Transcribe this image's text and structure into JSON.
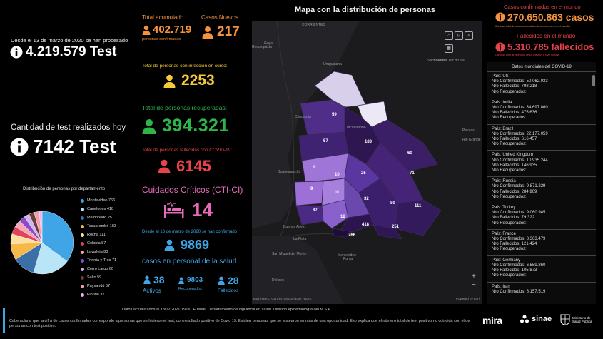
{
  "left": {
    "since_label": "Desde el 13 de marzo de 2020 se han procesado",
    "total_tests": "4.219.579 Test",
    "today_label": "Cantidad de test realizados hoy",
    "today_tests": "7142 Test",
    "pie_title": "Distribución de personas por departamento",
    "legend": [
      {
        "label": "Montevideo 766",
        "color": "#3fa5e6"
      },
      {
        "label": "Canelones 418",
        "color": "#b8e6f8"
      },
      {
        "label": "Maldonado 251",
        "color": "#3a6fa8"
      },
      {
        "label": "Tacuarembó 183",
        "color": "#f5b94a"
      },
      {
        "label": "Rocha 111",
        "color": "#fde0a0"
      },
      {
        "label": "Colonia 87",
        "color": "#e0425a"
      },
      {
        "label": "Lavalleja 80",
        "color": "#f5a6b8"
      },
      {
        "label": "Treinta y Tres 71",
        "color": "#8a4bc8"
      },
      {
        "label": "Cerro Largo 60",
        "color": "#d2b4f0"
      },
      {
        "label": "Salto 59",
        "color": "#6a3f38"
      },
      {
        "label": "Paysandú 57",
        "color": "#f59eb0"
      },
      {
        "label": "Florida 32",
        "color": "#e9b4e8"
      }
    ],
    "pie_values": [
      766,
      418,
      251,
      183,
      111,
      87,
      80,
      71,
      60,
      59,
      57,
      32
    ]
  },
  "mid": {
    "total_label": "Total acumulado",
    "total_value": "402.719",
    "total_sub": "personas confirmadas",
    "new_label": "Casos Nuevos",
    "new_value": "217",
    "active_label": "Total de personas con infección en curso:",
    "active_value": "2253",
    "recovered_label": "Total de personas recuperadas:",
    "recovered_value": "394.321",
    "deaths_label": "Total de personas fallecidas con COVID-19:",
    "deaths_value": "6145",
    "cti_label": "Cuidados Críticos (CTI-CI)",
    "cti_value": "14",
    "health_since": "Desde el 13 de marzo de 2020 se han confirmado",
    "health_value": "9869",
    "health_label": "casos en personal de la salud",
    "h_active_value": "38",
    "h_active_label": "Activos",
    "h_recovered_value": "9803",
    "h_recovered_label": "Recuperados",
    "h_deaths_value": "28",
    "h_deaths_label": "Fallecidos"
  },
  "map": {
    "title": "Mapa con la distribución de personas",
    "attribution": "Esri, HERE, Garmin, USGS | Esri, HERE",
    "powered": "Powered by Esri",
    "places": [
      "CORRIENTES",
      "Goya",
      "Reconquista",
      "Uruguaiana",
      "Santa María",
      "Santa Cruz do Sul",
      "Concordia",
      "Tacuarembó",
      "Pelotas",
      "Rio Grande",
      "Gualeguaychú",
      "Buenos Aires",
      "La Plata",
      "Montevideo",
      "San Miguel del Monte",
      "Dolores",
      "Punta"
    ],
    "dept_values": [
      "59",
      "57",
      "183",
      "60",
      "9",
      "10",
      "25",
      "71",
      "9",
      "10",
      "32",
      "80",
      "111",
      "87",
      "18",
      "418",
      "251",
      "766"
    ]
  },
  "right": {
    "cases_label": "Casos confirmados en el mundo",
    "cases_value": "270.650.863 casos",
    "cases_note": "Cantidad total de casos confirmados de coronavirus a nivel mundial",
    "deaths_label": "Fallecidos en el mundo",
    "deaths_value": "5.310.785 fallecidos",
    "deaths_note": "Cantidad total de fallecidos de coronavirus a nivel mundial",
    "panel_title": "Datos mundiales del COVID-19",
    "countries": [
      {
        "pais": "País: US",
        "conf": "Nro Confirmados: 50.062.033",
        "fall": "Nro Fallecidos: 798.218",
        "rec": "Nro Recuperados:"
      },
      {
        "pais": "País: India",
        "conf": "Nro Confirmados: 34.697.860",
        "fall": "Nro Fallecidos: 475.636",
        "rec": "Nro Recuperados:"
      },
      {
        "pais": "País: Brazil",
        "conf": "Nro Confirmados: 22.177.059",
        "fall": "Nro Fallecidos: 616.457",
        "rec": "Nro Recuperados:"
      },
      {
        "pais": "País: United Kingdom",
        "conf": "Nro Confirmados: 10.935.244",
        "fall": "Nro Fallecidos: 146.935",
        "rec": "Nro Recuperados:"
      },
      {
        "pais": "País: Russia",
        "conf": "Nro Confirmados: 9.871.229",
        "fall": "Nro Fallecidos: 284.909",
        "rec": "Nro Recuperados:"
      },
      {
        "pais": "País: Turkey",
        "conf": "Nro Confirmados: 9.060.945",
        "fall": "Nro Fallecidos: 79.322",
        "rec": "Nro Recuperados:"
      },
      {
        "pais": "País: France",
        "conf": "Nro Confirmados: 8.363.479",
        "fall": "Nro Fallecidos: 121.424",
        "rec": "Nro Recuperados:"
      },
      {
        "pais": "País: Germany",
        "conf": "Nro Confirmados: 6.559.860",
        "fall": "Nro Fallecidos: 105.873",
        "rec": "Nro Recuperados:"
      },
      {
        "pais": "País: Iran",
        "conf": "Nro Confirmados: 6.157.519",
        "fall": "",
        "rec": ""
      }
    ]
  },
  "footer": {
    "updated": "Datos actualizados al 13/12/2021 19:00. Fuente: Departamento de vigilancia en salud. División epidemiología del M.S.P.",
    "note": "Cabe aclarar que la cifra de casos confirmados corresponde a personas que se hicieron el test, con resultado positivo de Covid 19. Existen personas que se testearon en más de una oportunidad. Eso explica que el número total de test positivo no coincida con el de personas con test positivo.",
    "logo_mira": "mira",
    "logo_sinae": "sinae",
    "logo_msp": "Ministerio de Salud Pública"
  }
}
